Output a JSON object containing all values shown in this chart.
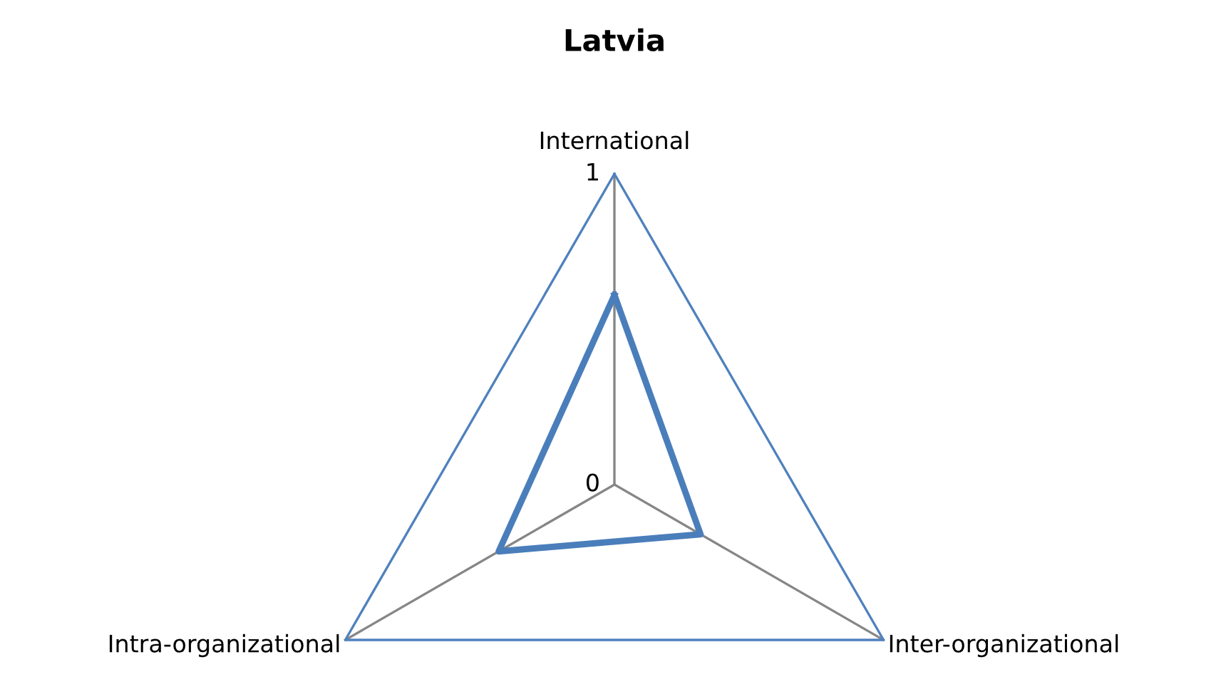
{
  "chart_data": {
    "type": "radar",
    "title": "Latvia",
    "categories": [
      "International",
      "Inter-organizational",
      "Intra-organizational"
    ],
    "series": [
      {
        "color": "#4a7ebb",
        "values": [
          0.61,
          0.32,
          0.43
        ]
      }
    ],
    "ylim": [
      0,
      1
    ],
    "yticks": [
      0,
      1
    ],
    "grid": true,
    "marker": "none",
    "line_style": "solid"
  }
}
